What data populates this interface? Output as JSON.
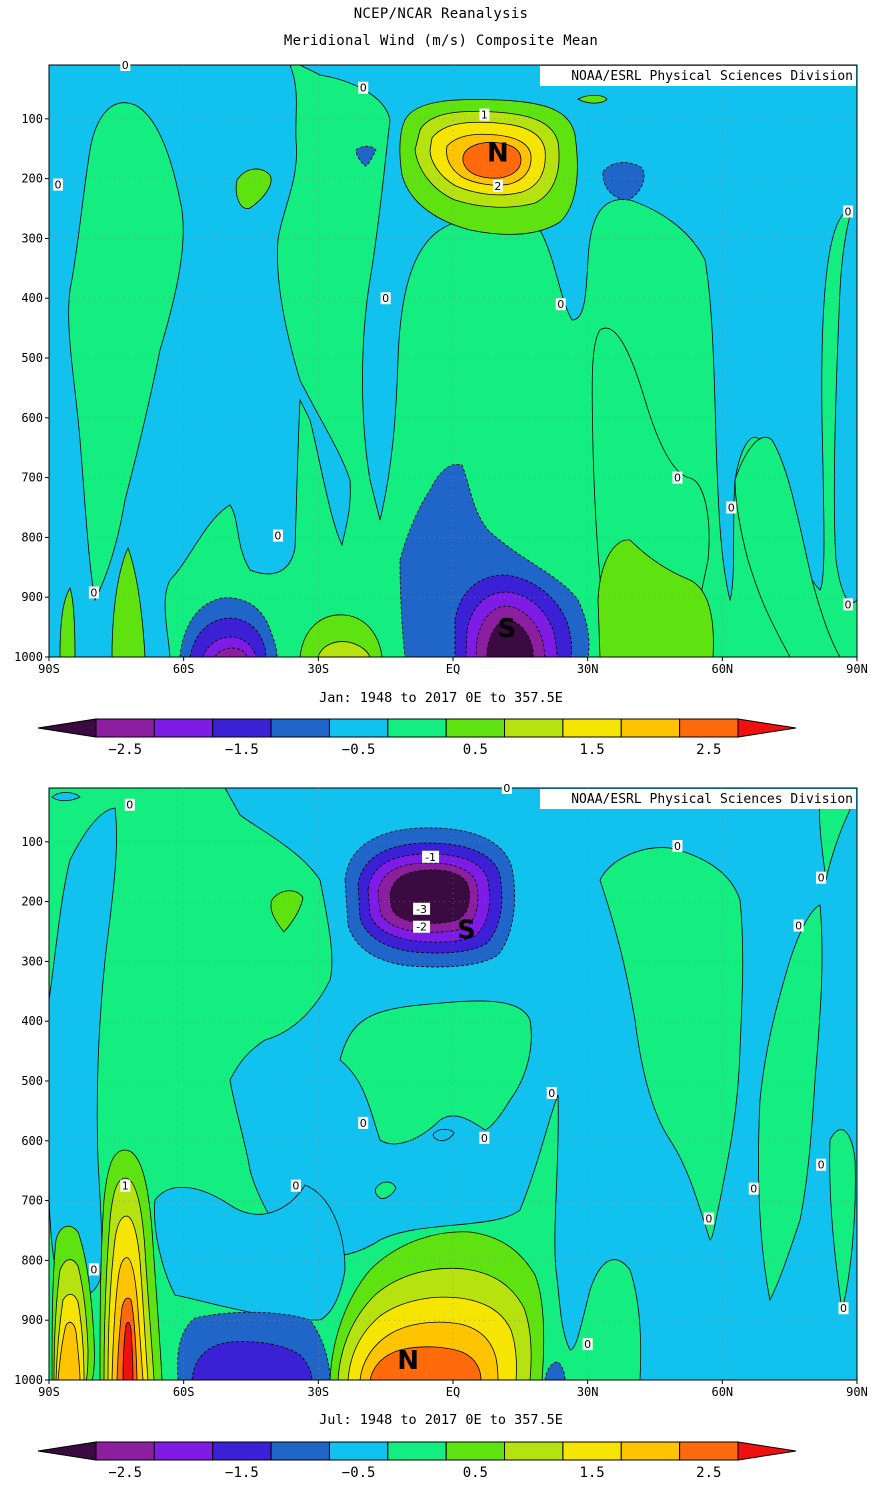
{
  "header": {
    "title": "NCEP/NCAR Reanalysis",
    "subtitle": "Meridional Wind (m/s) Composite Mean"
  },
  "colors": {
    "levels": [
      "#3a0a40",
      "#8b1fa0",
      "#7e1ce6",
      "#3b20d6",
      "#1f66c8",
      "#11c2ef",
      "#14ee80",
      "#5ee310",
      "#b6e310",
      "#f5e500",
      "#ffc400",
      "#ff6a0c",
      "#f01010"
    ]
  },
  "chart_data": [
    {
      "type": "contour",
      "credit": "NOAA/ESRL Physical Sciences Division",
      "period_label": "Jan: 1948 to 2017 0E to 357.5E",
      "x_ticks": [
        "90S",
        "60S",
        "30S",
        "EQ",
        "30N",
        "60N",
        "90N"
      ],
      "x_values": [
        -90,
        -60,
        -30,
        0,
        30,
        60,
        90
      ],
      "y_ticks": [
        "100",
        "200",
        "300",
        "400",
        "500",
        "600",
        "700",
        "800",
        "900",
        "1000"
      ],
      "y_values": [
        100,
        200,
        300,
        400,
        500,
        600,
        700,
        800,
        900,
        1000
      ],
      "xlim": [
        -90,
        90
      ],
      "ylim": [
        10,
        1000
      ],
      "y_reversed": true,
      "centers": [
        {
          "label": "N",
          "lat": 10,
          "p": 155,
          "peak": 3.0
        },
        {
          "label": "S",
          "lat": 12,
          "p": 950,
          "peak": -2.8
        }
      ],
      "contour_labels": [
        {
          "text": "0",
          "lat": -73,
          "p": 10
        },
        {
          "text": "0",
          "lat": -20,
          "p": 48
        },
        {
          "text": "1",
          "lat": 7,
          "p": 93
        },
        {
          "text": "2",
          "lat": 10,
          "p": 212
        },
        {
          "text": "0",
          "lat": -88,
          "p": 210
        },
        {
          "text": "0",
          "lat": 88,
          "p": 255
        },
        {
          "text": "0",
          "lat": -15,
          "p": 400
        },
        {
          "text": "0",
          "lat": 24,
          "p": 410
        },
        {
          "text": "0",
          "lat": 50,
          "p": 700
        },
        {
          "text": "0",
          "lat": 62,
          "p": 750
        },
        {
          "text": "0",
          "lat": -39,
          "p": 797
        },
        {
          "text": "0",
          "lat": -80,
          "p": 892
        },
        {
          "text": "0",
          "lat": 88,
          "p": 912
        }
      ]
    },
    {
      "type": "contour",
      "credit": "NOAA/ESRL Physical Sciences Division",
      "period_label": "Jul: 1948 to 2017 0E to 357.5E",
      "x_ticks": [
        "90S",
        "60S",
        "30S",
        "EQ",
        "30N",
        "60N",
        "90N"
      ],
      "x_values": [
        -90,
        -60,
        -30,
        0,
        30,
        60,
        90
      ],
      "y_ticks": [
        "100",
        "200",
        "300",
        "400",
        "500",
        "600",
        "700",
        "800",
        "900",
        "1000"
      ],
      "y_values": [
        100,
        200,
        300,
        400,
        500,
        600,
        700,
        800,
        900,
        1000
      ],
      "xlim": [
        -90,
        90
      ],
      "ylim": [
        10,
        1000
      ],
      "y_reversed": true,
      "centers": [
        {
          "label": "S",
          "lat": 3,
          "p": 245,
          "peak": -3.2
        },
        {
          "label": "N",
          "lat": -10,
          "p": 965,
          "peak": 2.9
        }
      ],
      "contour_labels": [
        {
          "text": "0",
          "lat": -72,
          "p": 38
        },
        {
          "text": "0",
          "lat": 12,
          "p": 10
        },
        {
          "text": "-1",
          "lat": -5,
          "p": 125
        },
        {
          "text": "-3",
          "lat": -7,
          "p": 212
        },
        {
          "text": "-2",
          "lat": -7,
          "p": 242
        },
        {
          "text": "0",
          "lat": 50,
          "p": 107
        },
        {
          "text": "0",
          "lat": 82,
          "p": 160
        },
        {
          "text": "0",
          "lat": 77,
          "p": 240
        },
        {
          "text": "0",
          "lat": -20,
          "p": 570
        },
        {
          "text": "0",
          "lat": 7,
          "p": 595
        },
        {
          "text": "0",
          "lat": 22,
          "p": 520
        },
        {
          "text": "0",
          "lat": -35,
          "p": 675
        },
        {
          "text": "0",
          "lat": 57,
          "p": 730
        },
        {
          "text": "0",
          "lat": 67,
          "p": 680
        },
        {
          "text": "0",
          "lat": 82,
          "p": 640
        },
        {
          "text": "1",
          "lat": -73,
          "p": 675
        },
        {
          "text": "0",
          "lat": -80,
          "p": 815
        },
        {
          "text": "0",
          "lat": 30,
          "p": 940
        },
        {
          "text": "0",
          "lat": 87,
          "p": 880
        }
      ]
    }
  ],
  "colorbar": {
    "labels": [
      "-2.5",
      "-1.5",
      "-0.5",
      "0.5",
      "1.5",
      "2.5"
    ],
    "label_values": [
      -2.5,
      -1.5,
      -0.5,
      0.5,
      1.5,
      2.5
    ]
  }
}
